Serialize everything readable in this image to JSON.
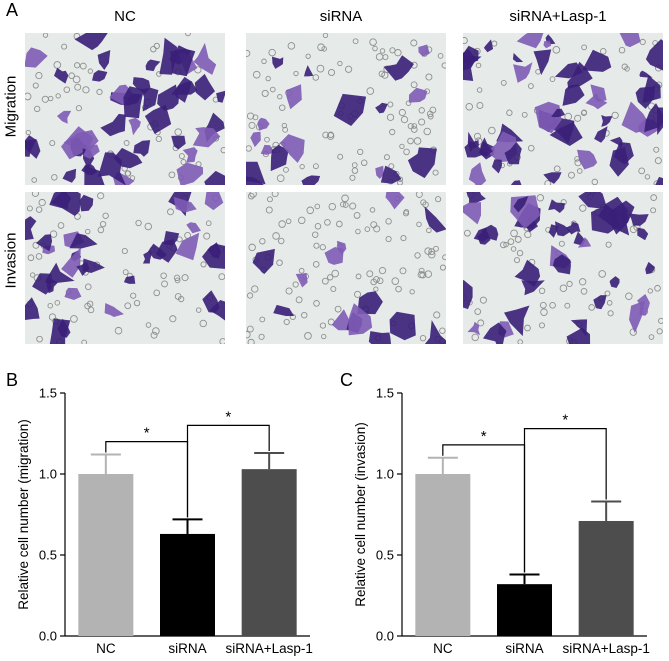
{
  "figure": {
    "panel_a_letter": "A",
    "panel_b_letter": "B",
    "panel_c_letter": "C",
    "columns": [
      "NC",
      "siRNA",
      "siRNA+Lasp-1"
    ],
    "rows": [
      "Migration",
      "Invasion"
    ]
  },
  "micrographs": [
    {
      "row": "Migration",
      "col": "NC",
      "stain_density": 0.55
    },
    {
      "row": "Migration",
      "col": "siRNA",
      "stain_density": 0.18
    },
    {
      "row": "Migration",
      "col": "siRNA+Lasp-1",
      "stain_density": 0.6
    },
    {
      "row": "Invasion",
      "col": "NC",
      "stain_density": 0.4
    },
    {
      "row": "Invasion",
      "col": "siRNA",
      "stain_density": 0.12
    },
    {
      "row": "Invasion",
      "col": "siRNA+Lasp-1",
      "stain_density": 0.45
    }
  ],
  "colors": {
    "stain": "#3a1f78",
    "stain_light": "#7e5bb5",
    "background": "#e6ebea",
    "pore": "#8f8f8f"
  },
  "chart_data": [
    {
      "type": "bar",
      "panel": "B",
      "categories": [
        "NC",
        "siRNA",
        "siRNA+Lasp-1"
      ],
      "values": [
        1.0,
        0.63,
        1.03
      ],
      "errors": [
        0.12,
        0.09,
        0.1
      ],
      "colors": [
        "#b3b3b3",
        "#000000",
        "#4d4d4d"
      ],
      "ylabel": "Relative cell number (migration)",
      "ylim": [
        0,
        1.5
      ],
      "yticks": [
        "0.0",
        "0.5",
        "1.0",
        "1.5"
      ],
      "significance": [
        {
          "from": 0,
          "to": 1,
          "label": "*",
          "y": 1.2
        },
        {
          "from": 1,
          "to": 2,
          "label": "*",
          "y": 1.3
        }
      ]
    },
    {
      "type": "bar",
      "panel": "C",
      "categories": [
        "NC",
        "siRNA",
        "siRNA+Lasp-1"
      ],
      "values": [
        1.0,
        0.32,
        0.71
      ],
      "errors": [
        0.1,
        0.06,
        0.12
      ],
      "colors": [
        "#b3b3b3",
        "#000000",
        "#4d4d4d"
      ],
      "ylabel": "Relative cell number (invasion)",
      "ylim": [
        0,
        1.5
      ],
      "yticks": [
        "0.0",
        "0.5",
        "1.0",
        "1.5"
      ],
      "significance": [
        {
          "from": 0,
          "to": 1,
          "label": "*",
          "y": 1.18
        },
        {
          "from": 1,
          "to": 2,
          "label": "*",
          "y": 1.28
        }
      ]
    }
  ]
}
